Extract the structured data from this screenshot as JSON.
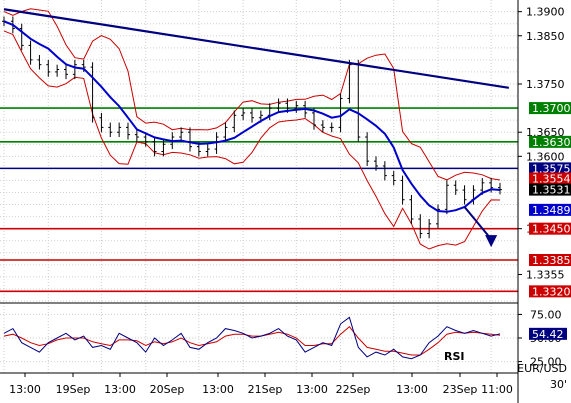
{
  "chart_data": {
    "type": "line",
    "symbol": "EUR/USD",
    "timeframe": "30'",
    "x_tick_labels": [
      "13:00",
      "19Sep",
      "13:00",
      "20Sep",
      "13:00",
      "21Sep",
      "13:00",
      "22Sep",
      "13:00",
      "23Sep",
      "11:00"
    ],
    "y_ticks": [
      1.39,
      1.385,
      1.375,
      1.365,
      1.36,
      1.345,
      1.3355
    ],
    "ylim": [
      1.33,
      1.392
    ],
    "levels": [
      {
        "value": 1.37,
        "color": "#008000"
      },
      {
        "value": 1.363,
        "color": "#008000"
      },
      {
        "value": 1.3575,
        "color": "#000080"
      },
      {
        "value": 1.345,
        "color": "#cc0000"
      },
      {
        "value": 1.3385,
        "color": "#cc0000"
      },
      {
        "value": 1.332,
        "color": "#cc0000"
      }
    ],
    "price_tags": [
      {
        "value": 1.3554,
        "bg": "#cc0000"
      },
      {
        "value": 1.3531,
        "bg": "#000000"
      },
      {
        "value": 1.3489,
        "bg": "#0000cc"
      }
    ],
    "trendline": {
      "x": [
        0,
        57
      ],
      "y": [
        1.3905,
        1.3742
      ]
    },
    "arrow": {
      "x": [
        52,
        55
      ],
      "y": [
        1.3495,
        1.342
      ]
    },
    "price_close": [
      1.388,
      1.3865,
      1.383,
      1.38,
      1.379,
      1.3775,
      1.378,
      1.377,
      1.379,
      1.3785,
      1.368,
      1.366,
      1.365,
      1.366,
      1.3645,
      1.364,
      1.363,
      1.361,
      1.3625,
      1.364,
      1.365,
      1.362,
      1.361,
      1.3615,
      1.364,
      1.366,
      1.3685,
      1.369,
      1.368,
      1.3685,
      1.37,
      1.371,
      1.37,
      1.3705,
      1.369,
      1.3665,
      1.366,
      1.366,
      1.372,
      1.379,
      1.364,
      1.359,
      1.358,
      1.356,
      1.355,
      1.351,
      1.347,
      1.344,
      1.346,
      1.349,
      1.354,
      1.353,
      1.351,
      1.353,
      1.3545,
      1.3535,
      1.3531
    ],
    "rsi": {
      "label": "RSI",
      "current": "54.42",
      "y_ticks": [
        75.0,
        50.0,
        25.0
      ],
      "ylim": [
        15,
        85
      ],
      "values": [
        55,
        60,
        45,
        40,
        35,
        45,
        50,
        55,
        48,
        52,
        40,
        42,
        38,
        55,
        50,
        45,
        35,
        50,
        42,
        48,
        55,
        40,
        38,
        45,
        50,
        60,
        58,
        55,
        50,
        52,
        55,
        60,
        52,
        48,
        35,
        40,
        45,
        42,
        65,
        72,
        40,
        30,
        35,
        32,
        38,
        30,
        28,
        32,
        45,
        52,
        62,
        58,
        55,
        58,
        55,
        52,
        54.42
      ],
      "signal_values": [
        52,
        54,
        50,
        45,
        42,
        44,
        48,
        50,
        50,
        50,
        46,
        44,
        42,
        48,
        48,
        47,
        42,
        46,
        44,
        46,
        50,
        45,
        42,
        44,
        46,
        52,
        54,
        54,
        52,
        52,
        54,
        56,
        54,
        50,
        42,
        42,
        44,
        44,
        54,
        62,
        50,
        40,
        38,
        36,
        36,
        34,
        32,
        32,
        38,
        45,
        54,
        56,
        55,
        56,
        55,
        54,
        53
      ]
    }
  }
}
